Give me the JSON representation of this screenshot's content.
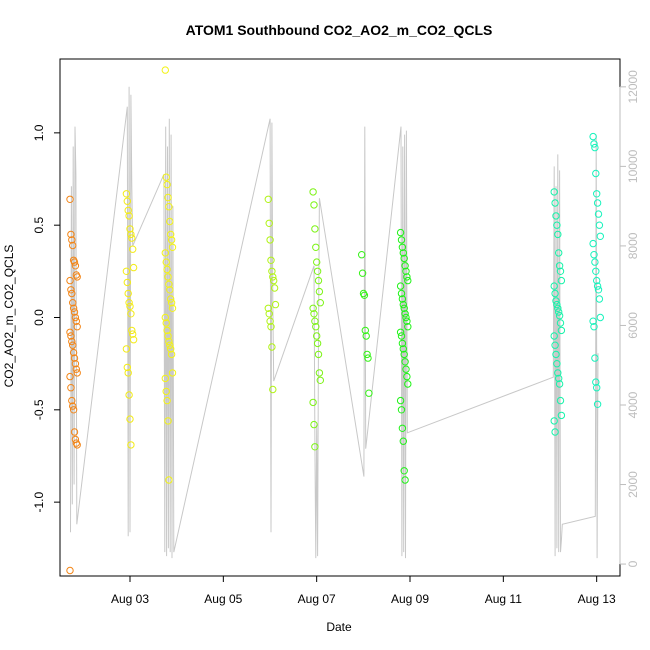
{
  "chart_data": {
    "type": "scatter",
    "title": "ATOM1 Southbound CO2_AO2_m_CO2_QCLS",
    "xlabel": "Date",
    "ylabel": "CO2_AO2_m_CO2_QCLS",
    "x_ticks": [
      "Aug 03",
      "Aug 05",
      "Aug 07",
      "Aug 09",
      "Aug 11",
      "Aug 13"
    ],
    "y_ticks": [
      "-1.0",
      "-0.5",
      "0.0",
      "0.5",
      "1.0"
    ],
    "y2_ticks": [
      "0",
      "2000",
      "4000",
      "6000",
      "8000",
      "10000",
      "12000"
    ],
    "xlim": [
      "2016-08-01T12:00",
      "2016-08-13T12:00"
    ],
    "ylim": [
      -1.4,
      1.4
    ],
    "y2lim": [
      -300,
      12700
    ],
    "grid": false,
    "colors": {
      "points_start": "#f28c28",
      "points_mid": "#f5f52a",
      "points_green": "#22e022",
      "points_end": "#22eec0",
      "altitude_line": "#c8c8c8",
      "right_axis": "#bdbdbd"
    },
    "series": [
      {
        "kind": "points",
        "groups": [
          {
            "x": "2016-08-01T19:00",
            "hue": 30,
            "y": [
              0.64,
              0.45,
              0.42,
              0.39,
              0.31,
              0.3,
              0.28,
              0.23,
              0.22,
              0.2,
              0.15,
              0.13,
              0.08,
              0.05,
              0.03,
              0.0,
              -0.02,
              -0.05,
              -0.08,
              -0.1,
              -0.13,
              -0.15,
              -0.19,
              -0.22,
              -0.25,
              -0.28,
              -0.3,
              -0.32,
              -0.38,
              -0.45,
              -0.48,
              -0.5,
              -0.62,
              -0.66,
              -0.68,
              -0.69,
              -1.37
            ]
          },
          {
            "x": "2016-08-03T00:00",
            "hue": 58,
            "y": [
              0.67,
              0.63,
              0.58,
              0.55,
              0.48,
              0.45,
              0.43,
              0.37,
              0.27,
              0.25,
              0.19,
              0.13,
              0.08,
              0.06,
              0.02,
              -0.07,
              -0.09,
              -0.12,
              -0.17,
              -0.27,
              -0.3,
              -0.42,
              -0.55,
              -0.69
            ]
          },
          {
            "x": "2016-08-03T20:00",
            "hue": 60,
            "y": [
              1.34,
              0.76,
              0.72,
              0.65,
              0.6,
              0.52,
              0.45,
              0.42,
              0.38,
              0.35,
              0.3,
              0.26,
              0.22,
              0.18,
              0.15,
              0.1,
              0.08,
              0.05,
              0.0,
              -0.03,
              -0.07,
              -0.1,
              -0.13,
              -0.15,
              -0.17,
              -0.2,
              -0.3,
              -0.33,
              -0.4,
              -0.45,
              -0.56,
              -0.88
            ]
          },
          {
            "x": "2016-08-06T01:00",
            "hue": 78,
            "y": [
              0.64,
              0.51,
              0.42,
              0.31,
              0.25,
              0.22,
              0.2,
              0.16,
              0.07,
              0.05,
              0.02,
              -0.02,
              -0.05,
              -0.16,
              -0.39
            ]
          },
          {
            "x": "2016-08-07T00:00",
            "hue": 92,
            "y": [
              0.68,
              0.61,
              0.48,
              0.38,
              0.3,
              0.25,
              0.2,
              0.14,
              0.08,
              0.05,
              0.02,
              -0.02,
              -0.05,
              -0.1,
              -0.14,
              -0.2,
              -0.3,
              -0.34,
              -0.46,
              -0.58,
              -0.7
            ]
          },
          {
            "x": "2016-08-08T01:00",
            "hue": 112,
            "y": [
              0.34,
              0.24,
              0.13,
              0.12,
              -0.07,
              -0.1,
              -0.2,
              -0.22,
              -0.41
            ]
          },
          {
            "x": "2016-08-08T21:00",
            "hue": 118,
            "y": [
              0.46,
              0.42,
              0.38,
              0.35,
              0.32,
              0.28,
              0.25,
              0.22,
              0.2,
              0.17,
              0.13,
              0.1,
              0.07,
              0.05,
              0.02,
              0.0,
              -0.02,
              -0.05,
              -0.08,
              -0.1,
              -0.14,
              -0.17,
              -0.2,
              -0.24,
              -0.28,
              -0.32,
              -0.36,
              -0.45,
              -0.5,
              -0.6,
              -0.67,
              -0.83,
              -0.88
            ]
          },
          {
            "x": "2016-08-12T04:00",
            "hue": 160,
            "y": [
              0.68,
              0.62,
              0.55,
              0.5,
              0.45,
              0.35,
              0.28,
              0.25,
              0.2,
              0.17,
              0.13,
              0.09,
              0.07,
              0.05,
              0.03,
              0.01,
              -0.03,
              -0.07,
              -0.1,
              -0.15,
              -0.2,
              -0.25,
              -0.3,
              -0.33,
              -0.36,
              -0.45,
              -0.53,
              -0.56,
              -0.62
            ]
          },
          {
            "x": "2016-08-13T00:00",
            "hue": 165,
            "y": [
              0.98,
              0.94,
              0.92,
              0.78,
              0.67,
              0.62,
              0.56,
              0.5,
              0.44,
              0.4,
              0.34,
              0.3,
              0.25,
              0.2,
              0.17,
              0.15,
              0.1,
              0.0,
              -0.02,
              -0.05,
              -0.22,
              -0.35,
              -0.38,
              -0.47
            ]
          }
        ]
      },
      {
        "kind": "altitude_line",
        "segments": [
          {
            "x": "2016-08-01T19:00",
            "y2": [
              800,
              9500,
              1500,
              10500,
              2000,
              11000,
              9800,
              1000
            ]
          },
          {
            "x": "2016-08-03T00:00",
            "y2": [
              11500,
              700,
              12000,
              800,
              11800,
              9500,
              8000
            ]
          },
          {
            "x": "2016-08-03T20:00",
            "y2": [
              9800,
              300,
              11000,
              200,
              10500,
              400,
              11200,
              300,
              10800,
              150,
              9000,
              300
            ]
          },
          {
            "x": "2016-08-06T01:00",
            "y2": [
              11200,
              800,
              11100,
              6600,
              4600
            ]
          },
          {
            "x": "2016-08-07T00:00",
            "y2": [
              7500,
              3000,
              150,
              3500,
              200,
              5800,
              9200
            ]
          },
          {
            "x": "2016-08-08T01:00",
            "y2": [
              2200,
              11000,
              2900,
              3100
            ]
          },
          {
            "x": "2016-08-08T21:00",
            "y2": [
              11000,
              200,
              10500,
              300,
              10800,
              150,
              10900,
              3300
            ]
          },
          {
            "x": "2016-08-12T04:00",
            "y2": [
              4700,
              10000,
              200,
              9500,
              400,
              10300,
              300,
              9900,
              300,
              600,
              1000
            ]
          },
          {
            "x": "2016-08-13T00:00",
            "y2": [
              1200,
              10800,
              150,
              5300
            ]
          }
        ]
      }
    ]
  }
}
